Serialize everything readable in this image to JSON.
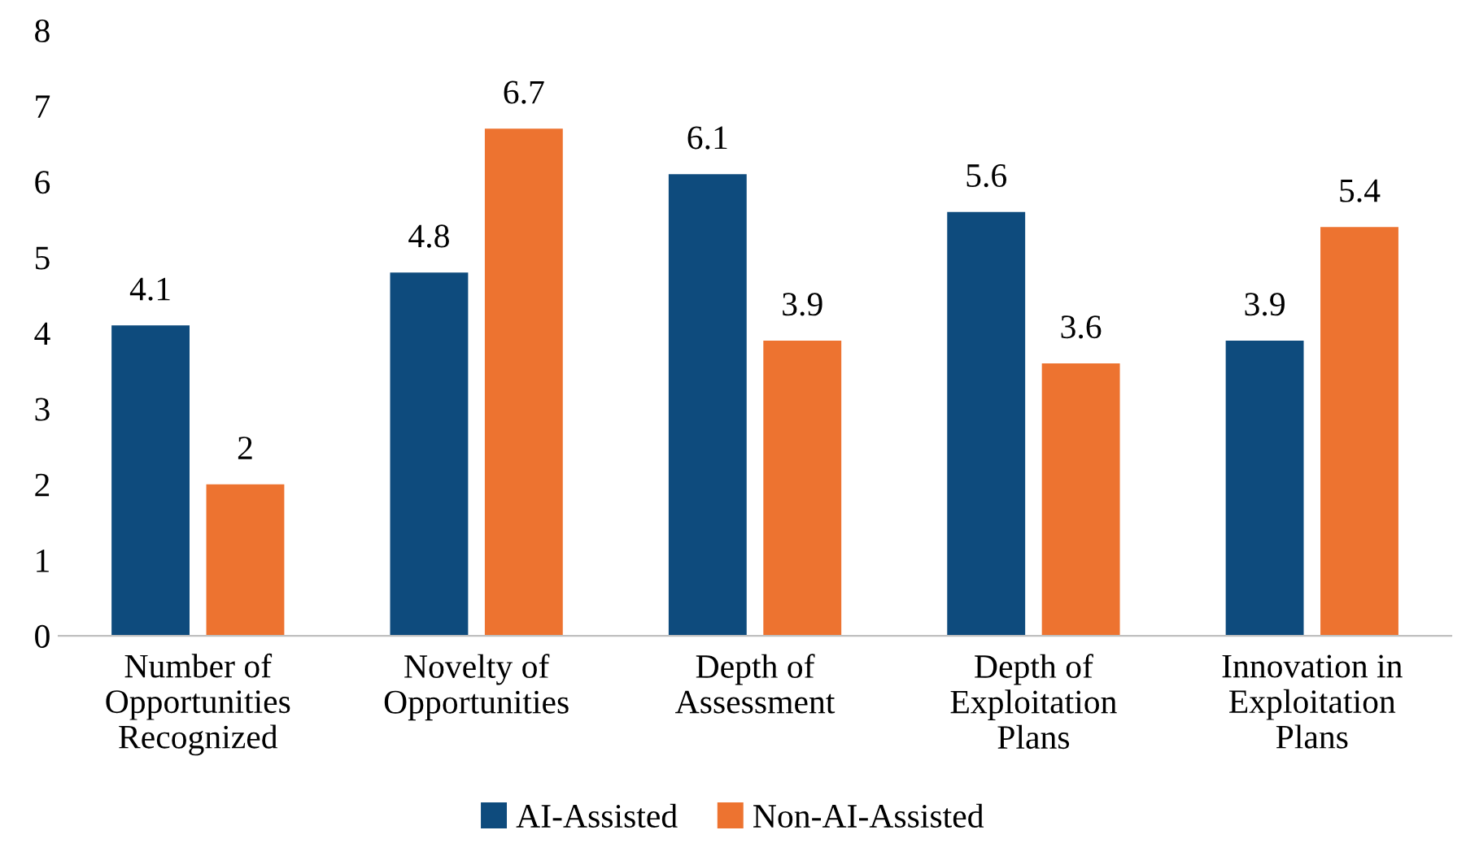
{
  "chart_data": {
    "type": "bar",
    "categories": [
      "Number of\nOpportunities\nRecognized",
      "Novelty of\nOpportunities",
      "Depth of\nAssessment",
      "Depth of\nExploitation\nPlans",
      "Innovation in\nExploitation\nPlans"
    ],
    "series": [
      {
        "name": "AI-Assisted",
        "color": "#0e4b7d",
        "values": [
          4.1,
          4.8,
          6.1,
          5.6,
          3.9
        ]
      },
      {
        "name": "Non-AI-Assisted",
        "color": "#ed7330",
        "values": [
          2,
          6.7,
          3.9,
          3.6,
          5.4
        ]
      }
    ],
    "ylim": [
      0,
      8
    ],
    "yticks": [
      0,
      1,
      2,
      3,
      4,
      5,
      6,
      7,
      8
    ],
    "data_labels": true,
    "grid": false,
    "legend": "bottom"
  }
}
